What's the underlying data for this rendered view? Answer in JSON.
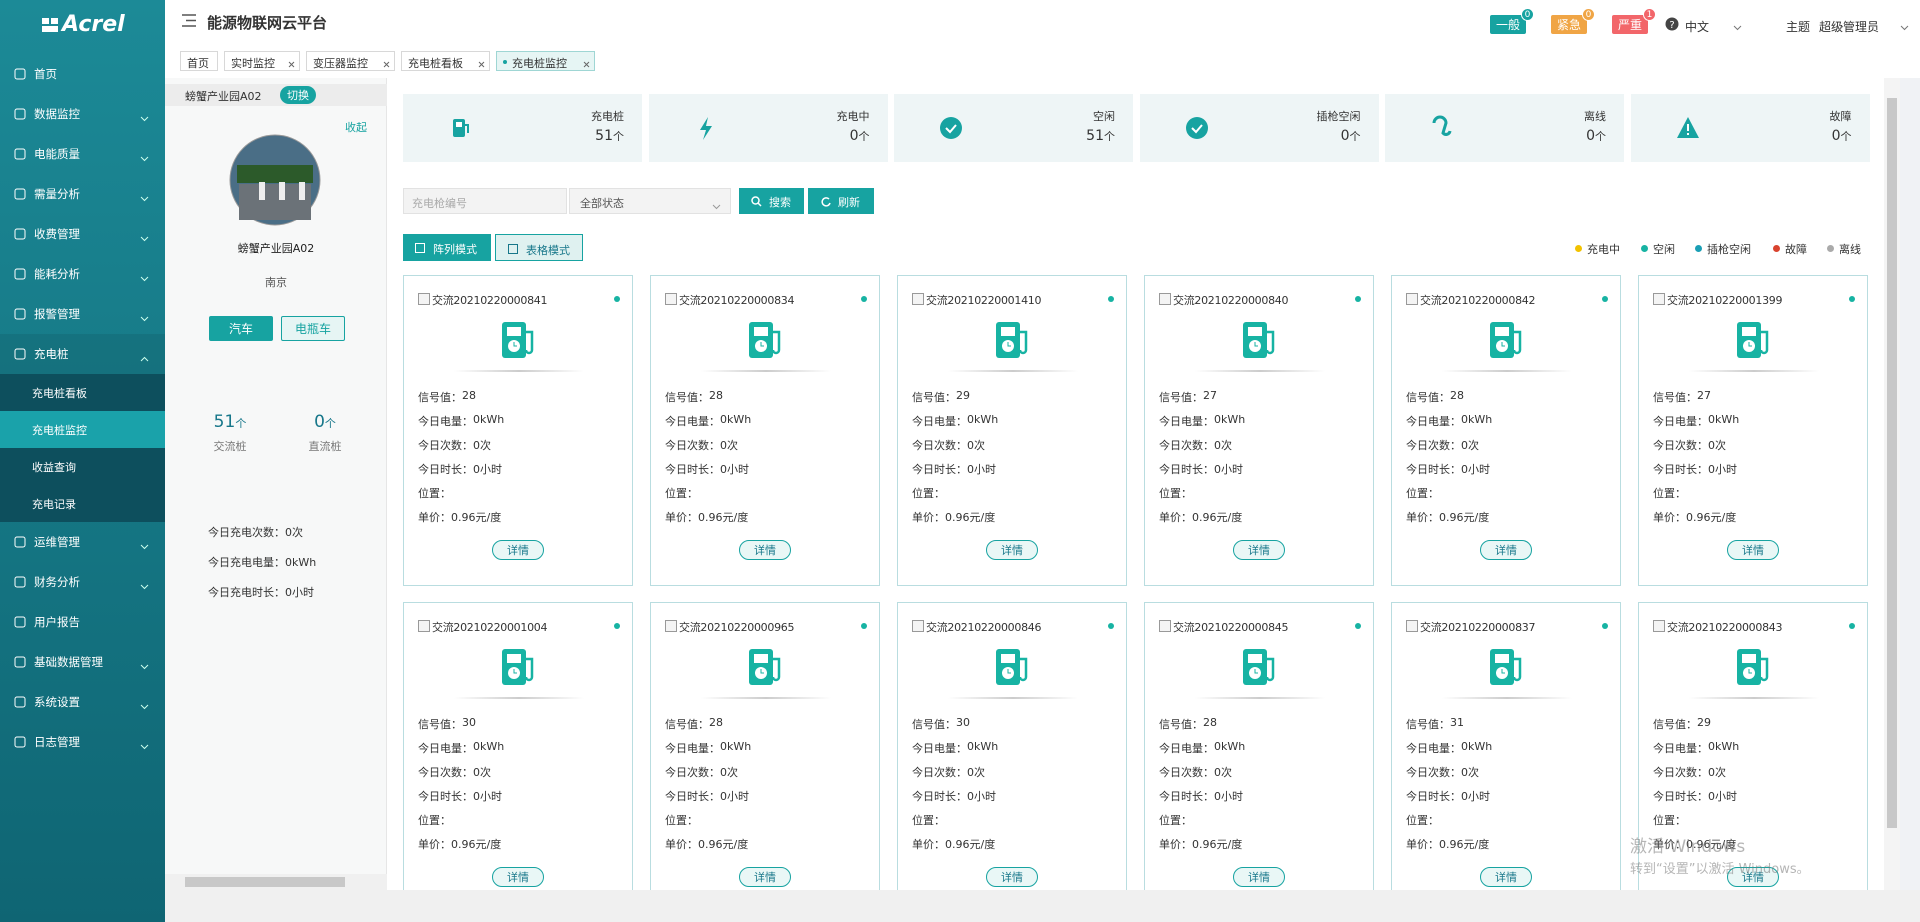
{
  "header": {
    "logo": "Acrel",
    "title": "能源物联网云平台",
    "alerts": [
      {
        "label": "一般",
        "count": 0,
        "color": "#17a3a1"
      },
      {
        "label": "紧急",
        "count": 0,
        "color": "#f0a545"
      },
      {
        "label": "严重",
        "count": 1,
        "color": "#f2666a"
      }
    ],
    "language": "中文",
    "theme": "主题",
    "user": "超级管理员"
  },
  "tabs": [
    {
      "label": "首页",
      "closable": false
    },
    {
      "label": "实时监控",
      "closable": true
    },
    {
      "label": "变压器监控",
      "closable": true
    },
    {
      "label": "充电桩看板",
      "closable": true
    },
    {
      "label": "充电桩监控",
      "closable": true,
      "active": true
    }
  ],
  "menu": [
    {
      "label": "首页",
      "expandable": false
    },
    {
      "label": "数据监控",
      "expandable": true
    },
    {
      "label": "电能质量",
      "expandable": true
    },
    {
      "label": "需量分析",
      "expandable": true
    },
    {
      "label": "收费管理",
      "expandable": true
    },
    {
      "label": "能耗分析",
      "expandable": true
    },
    {
      "label": "报警管理",
      "expandable": true
    },
    {
      "label": "充电桩",
      "expandable": true,
      "children": [
        {
          "label": "充电桩看板"
        },
        {
          "label": "充电桩监控",
          "active": true
        },
        {
          "label": "收益查询"
        },
        {
          "label": "充电记录"
        }
      ]
    },
    {
      "label": "运维管理",
      "expandable": true
    },
    {
      "label": "财务分析",
      "expandable": true
    },
    {
      "label": "用户报告",
      "expandable": false
    },
    {
      "label": "基础数据管理",
      "expandable": true
    },
    {
      "label": "系统设置",
      "expandable": true
    },
    {
      "label": "日志管理",
      "expandable": true
    }
  ],
  "site": {
    "selector": "螃蟹产业园A02",
    "switch": "切换",
    "collapse": "收起",
    "name": "螃蟹产业园A02",
    "city": "南京",
    "vehicle_buttons": [
      "汽车",
      "电瓶车"
    ],
    "stats": [
      {
        "value": "51",
        "unit": "个",
        "label": "交流桩"
      },
      {
        "value": "0",
        "unit": "个",
        "label": "直流桩"
      }
    ],
    "today": [
      "今日充电次数：0次",
      "今日充电电量：0kWh",
      "今日充电时长：0小时"
    ]
  },
  "summary": [
    {
      "label": "充电桩",
      "value": "51",
      "unit": "个"
    },
    {
      "label": "充电中",
      "value": "0",
      "unit": "个"
    },
    {
      "label": "空闲",
      "value": "51",
      "unit": "个"
    },
    {
      "label": "插枪空闲",
      "value": "0",
      "unit": "个"
    },
    {
      "label": "离线",
      "value": "0",
      "unit": "个"
    },
    {
      "label": "故障",
      "value": "0",
      "unit": "个"
    }
  ],
  "search": {
    "placeholder": "充电枪编号",
    "status": "全部状态",
    "search_button": "搜索",
    "refresh_button": "刷新"
  },
  "modes": [
    "阵列模式",
    "表格模式"
  ],
  "legend": [
    {
      "label": "充电中",
      "color": "#f2c200"
    },
    {
      "label": "空闲",
      "color": "#17b3a3"
    },
    {
      "label": "插枪空闲",
      "color": "#1a9fb5"
    },
    {
      "label": "故障",
      "color": "#d9432e"
    },
    {
      "label": "离线",
      "color": "#aaaaaa"
    }
  ],
  "card_labels": {
    "signal": "信号值：",
    "energy": "今日电量：",
    "count": "今日次数：",
    "duration": "今日时长：",
    "position": "位置：",
    "price": "单价："
  },
  "detail_button": "详情",
  "cards": [
    {
      "id": "交流20210220000841",
      "signal": "28",
      "energy": "0kWh",
      "count": "0次",
      "duration": "0小时",
      "price": "0.96元/度"
    },
    {
      "id": "交流20210220000834",
      "signal": "28",
      "energy": "0kWh",
      "count": "0次",
      "duration": "0小时",
      "price": "0.96元/度"
    },
    {
      "id": "交流20210220001410",
      "signal": "29",
      "energy": "0kWh",
      "count": "0次",
      "duration": "0小时",
      "price": "0.96元/度"
    },
    {
      "id": "交流20210220000840",
      "signal": "27",
      "energy": "0kWh",
      "count": "0次",
      "duration": "0小时",
      "price": "0.96元/度"
    },
    {
      "id": "交流20210220000842",
      "signal": "28",
      "energy": "0kWh",
      "count": "0次",
      "duration": "0小时",
      "price": "0.96元/度"
    },
    {
      "id": "交流20210220001399",
      "signal": "27",
      "energy": "0kWh",
      "count": "0次",
      "duration": "0小时",
      "price": "0.96元/度"
    },
    {
      "id": "交流20210220001004",
      "signal": "30",
      "energy": "0kWh",
      "count": "0次",
      "duration": "0小时",
      "price": "0.96元/度"
    },
    {
      "id": "交流20210220000965",
      "signal": "28",
      "energy": "0kWh",
      "count": "0次",
      "duration": "0小时",
      "price": "0.96元/度"
    },
    {
      "id": "交流20210220000846",
      "signal": "30",
      "energy": "0kWh",
      "count": "0次",
      "duration": "0小时",
      "price": "0.96元/度"
    },
    {
      "id": "交流20210220000845",
      "signal": "28",
      "energy": "0kWh",
      "count": "0次",
      "duration": "0小时",
      "price": "0.96元/度"
    },
    {
      "id": "交流20210220000837",
      "signal": "31",
      "energy": "0kWh",
      "count": "0次",
      "duration": "0小时",
      "price": "0.96元/度"
    },
    {
      "id": "交流20210220000843",
      "signal": "29",
      "energy": "0kWh",
      "count": "0次",
      "duration": "0小时",
      "price": "0.96元/度"
    }
  ],
  "watermark": {
    "title": "激活 Windows",
    "text": "转到“设置”以激活 Windows。"
  }
}
